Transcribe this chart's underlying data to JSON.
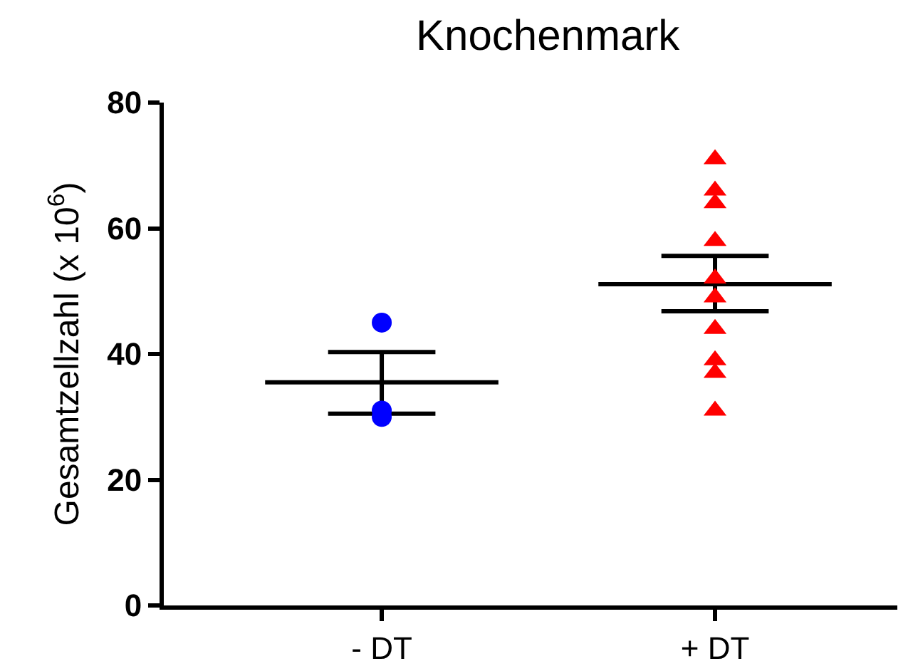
{
  "chart_data": {
    "type": "scatter",
    "title": "Knochenmark",
    "ylabel": "Gesamtzellzahl (x 10$^{6}$)",
    "categories": [
      "- DT",
      "+ DT"
    ],
    "series": [
      {
        "color": "#0000ff",
        "marker": "circle",
        "x": [
          "- DT",
          "- DT",
          "- DT"
        ],
        "values": [
          45,
          30,
          31
        ]
      },
      {
        "color": "#ff0000",
        "marker": "triangle",
        "x": [
          "+ DT",
          "+ DT",
          "+ DT",
          "+ DT",
          "+ DT",
          "+ DT",
          "+ DT",
          "+ DT",
          "+ DT",
          "+ DT"
        ],
        "values": [
          71,
          66,
          64,
          58,
          52,
          49,
          44,
          39,
          37,
          31
        ]
      },
      {
        "type": "box",
        "color": "#000000",
        "boxes": [
          {
            "low": 30.5,
            "q1": 35.5,
            "median": 35.5,
            "q3": 35.5,
            "high": 40.3
          },
          {
            "low": 46.8,
            "q1": 51.1,
            "median": 51.1,
            "q3": 51.1,
            "high": 55.6
          }
        ]
      }
    ],
    "ylim": [
      0,
      80
    ],
    "yticks": [
      0,
      20,
      40,
      60,
      80
    ],
    "grid": false
  }
}
